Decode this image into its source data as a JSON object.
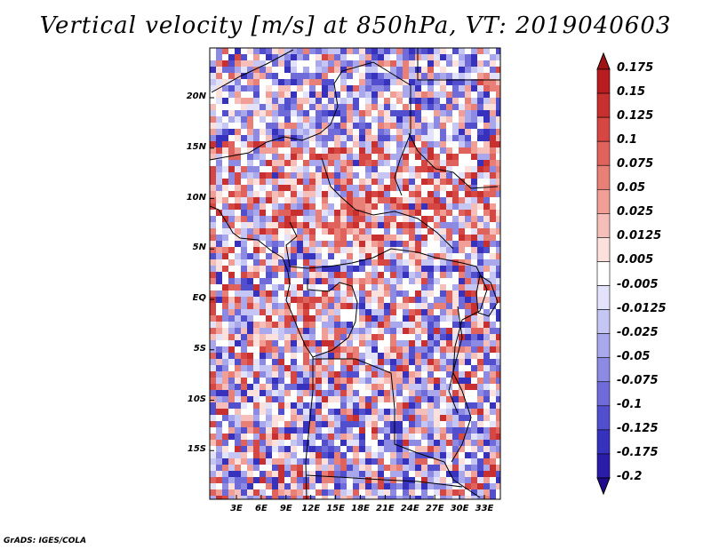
{
  "title": "Vertical velocity [m/s] at 850hPa, VT: 2019040603",
  "credit": "GrADS: IGES/COLA",
  "lat_labels": [
    "20N",
    "15N",
    "10N",
    "5N",
    "EQ",
    "5S",
    "10S",
    "15S"
  ],
  "lat_values": [
    20,
    15,
    10,
    5,
    0,
    -5,
    -10,
    -15
  ],
  "lon_labels": [
    "3E",
    "6E",
    "9E",
    "12E",
    "15E",
    "18E",
    "21E",
    "24E",
    "27E",
    "30E",
    "33E"
  ],
  "lon_values": [
    3,
    6,
    9,
    12,
    15,
    18,
    21,
    24,
    27,
    30,
    33
  ],
  "colorbar": {
    "labels": [
      "0.175",
      "0.15",
      "0.125",
      "0.1",
      "0.075",
      "0.05",
      "0.025",
      "0.0125",
      "0.005",
      "-0.005",
      "-0.0125",
      "-0.025",
      "-0.05",
      "-0.075",
      "-0.1",
      "-0.125",
      "-0.175",
      "-0.2"
    ],
    "colors": [
      "#a01216",
      "#b81c20",
      "#c8302f",
      "#d64744",
      "#e0625c",
      "#e98078",
      "#f09e96",
      "#f6beb8",
      "#fbe0dc",
      "#ffffff",
      "#e2e2fb",
      "#c6c6f4",
      "#a9a8ec",
      "#8c8ae3",
      "#6f6cda",
      "#524fce",
      "#3732bd",
      "#2a1ba8",
      "#200b8e"
    ]
  }
}
